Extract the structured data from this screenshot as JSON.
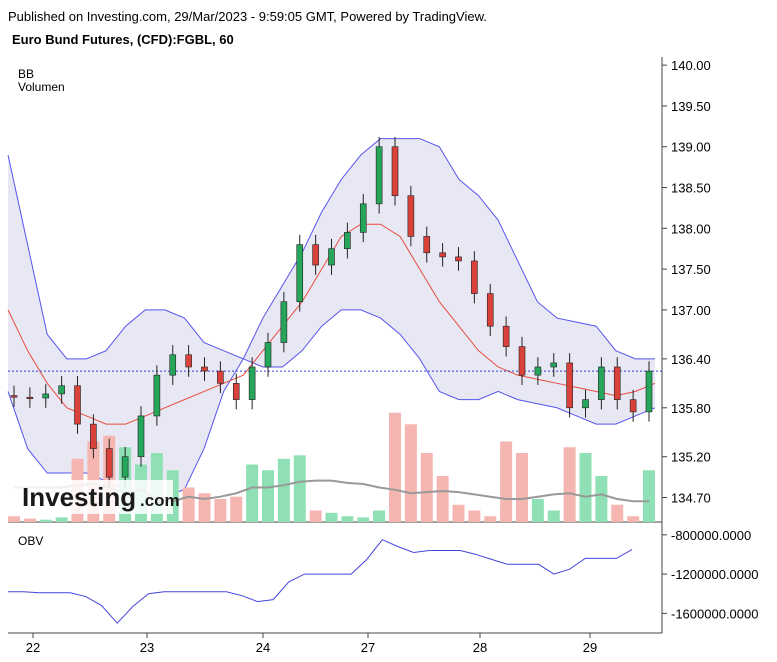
{
  "header": {
    "published": "Published on Investing.com, 29/Mar/2023 - 9:59:05 GMT, Powered by TradingView.",
    "instrument": "Euro Bund Futures, (CFD):FGBL, 60"
  },
  "legend": {
    "bb": "BB",
    "volume": "Volumen",
    "obv": "OBV"
  },
  "watermark": {
    "brand": "Investing",
    "suffix": ".com"
  },
  "colors": {
    "up": "#26a65b",
    "down": "#d9413a",
    "bb_band": "#5555ee",
    "bb_fill": "#e8e8f4",
    "basis": "#e74c3c",
    "vol_up": "#8fe0b5",
    "vol_down": "#f5b5b0",
    "vol_ma": "#999999",
    "obv": "#4444dd",
    "last_price": "#3344cc"
  },
  "chart_data": [
    {
      "type": "candlestick",
      "title": "Euro Bund Futures, (CFD):FGBL, 60",
      "ylim": [
        134.4,
        140.1
      ],
      "yticks": [
        "140.00",
        "139.50",
        "139.00",
        "138.50",
        "138.00",
        "137.50",
        "137.00",
        "136.40",
        "135.80",
        "135.20",
        "134.70"
      ],
      "ytick_values": [
        140.0,
        139.5,
        139.0,
        138.5,
        138.0,
        137.5,
        137.0,
        136.4,
        135.8,
        135.2,
        134.7
      ],
      "xticks": [
        "22",
        "23",
        "24",
        "27",
        "28",
        "29"
      ],
      "last_price": 136.25,
      "series_bb_upper": [
        138.9,
        137.8,
        136.7,
        136.4,
        136.4,
        136.5,
        136.8,
        137.0,
        137.0,
        136.9,
        136.6,
        136.5,
        136.4,
        136.9,
        137.3,
        137.7,
        138.2,
        138.6,
        138.9,
        139.1,
        139.1,
        139.1,
        139.0,
        138.6,
        138.4,
        138.1,
        137.6,
        137.1,
        136.9,
        136.85,
        136.8,
        136.5,
        136.4,
        136.4
      ],
      "series_bb_lower": [
        136.0,
        135.3,
        135.0,
        135.0,
        135.0,
        134.9,
        134.8,
        134.7,
        134.7,
        134.8,
        135.3,
        136.0,
        136.4,
        136.3,
        136.3,
        136.5,
        136.8,
        137.0,
        137.0,
        136.9,
        136.7,
        136.4,
        136.0,
        135.9,
        135.9,
        136.0,
        135.9,
        135.85,
        135.8,
        135.7,
        135.6,
        135.6,
        135.7,
        135.8
      ],
      "series_bb_basis": [
        137.0,
        136.5,
        136.1,
        135.8,
        135.7,
        135.6,
        135.6,
        135.7,
        135.8,
        135.9,
        136.0,
        136.1,
        136.2,
        136.5,
        136.8,
        137.1,
        137.5,
        137.9,
        138.05,
        138.05,
        137.9,
        137.5,
        137.1,
        136.8,
        136.5,
        136.3,
        136.2,
        136.15,
        136.1,
        136.05,
        136.0,
        135.95,
        136.0,
        136.1
      ],
      "candles": [
        [
          135.95,
          135.93
        ],
        [
          135.93,
          135.92
        ],
        [
          135.92,
          135.97
        ],
        [
          135.97,
          136.07
        ],
        [
          136.07,
          135.6
        ],
        [
          135.6,
          135.3
        ],
        [
          135.3,
          134.95
        ],
        [
          134.95,
          135.2
        ],
        [
          135.2,
          135.7
        ],
        [
          135.7,
          136.2
        ],
        [
          136.2,
          136.45
        ],
        [
          136.45,
          136.3
        ],
        [
          136.3,
          136.25
        ],
        [
          136.25,
          136.1
        ],
        [
          136.1,
          135.9
        ],
        [
          135.9,
          136.3
        ],
        [
          136.3,
          136.6
        ],
        [
          136.6,
          137.1
        ],
        [
          137.1,
          137.8
        ],
        [
          137.8,
          137.55
        ],
        [
          137.55,
          137.75
        ],
        [
          137.75,
          137.95
        ],
        [
          137.95,
          138.3
        ],
        [
          138.3,
          139.0
        ],
        [
          139.0,
          138.4
        ],
        [
          138.4,
          137.9
        ],
        [
          137.9,
          137.7
        ],
        [
          137.7,
          137.65
        ],
        [
          137.65,
          137.6
        ],
        [
          137.6,
          137.2
        ],
        [
          137.2,
          136.8
        ],
        [
          136.8,
          136.55
        ],
        [
          136.55,
          136.2
        ],
        [
          136.2,
          136.3
        ],
        [
          136.3,
          136.35
        ],
        [
          136.35,
          135.8
        ],
        [
          135.8,
          135.9
        ],
        [
          135.9,
          136.3
        ],
        [
          136.3,
          135.9
        ],
        [
          135.9,
          135.75
        ],
        [
          135.75,
          136.25
        ]
      ],
      "volume_bars": [
        0.05,
        0.03,
        0.02,
        0.04,
        0.55,
        0.7,
        0.75,
        0.65,
        0.5,
        0.6,
        0.45,
        0.3,
        0.25,
        0.2,
        0.22,
        0.5,
        0.45,
        0.55,
        0.58,
        0.1,
        0.08,
        0.05,
        0.04,
        0.1,
        0.95,
        0.85,
        0.6,
        0.4,
        0.15,
        0.1,
        0.05,
        0.7,
        0.6,
        0.2,
        0.1,
        0.65,
        0.6,
        0.4,
        0.15,
        0.05,
        0.45
      ],
      "volume_ma": [
        0.3,
        0.3,
        0.3,
        0.3,
        0.32,
        0.33,
        0.3,
        0.25,
        0.28,
        0.2,
        0.18,
        0.22,
        0.2,
        0.22,
        0.25,
        0.3,
        0.3,
        0.32,
        0.35,
        0.36,
        0.36,
        0.34,
        0.33,
        0.3,
        0.28,
        0.25,
        0.26,
        0.27,
        0.26,
        0.24,
        0.22,
        0.2,
        0.2,
        0.22,
        0.24,
        0.25,
        0.22,
        0.24,
        0.2,
        0.18,
        0.18
      ]
    },
    {
      "type": "line",
      "title": "OBV",
      "ylim": [
        -1800000,
        -700000
      ],
      "yticks": [
        "-800000.0000",
        "-1200000.0000",
        "-1600000.0000"
      ],
      "ytick_values": [
        -800000,
        -1200000,
        -1600000
      ],
      "values": [
        -1380000,
        -1380000,
        -1390000,
        -1390000,
        -1390000,
        -1430000,
        -1520000,
        -1700000,
        -1530000,
        -1400000,
        -1380000,
        -1380000,
        -1380000,
        -1380000,
        -1380000,
        -1420000,
        -1480000,
        -1460000,
        -1280000,
        -1200000,
        -1200000,
        -1200000,
        -1200000,
        -1050000,
        -850000,
        -920000,
        -980000,
        -960000,
        -960000,
        -960000,
        -1000000,
        -1050000,
        -1100000,
        -1100000,
        -1100000,
        -1200000,
        -1150000,
        -1040000,
        -1040000,
        -1040000,
        -950000
      ]
    }
  ]
}
